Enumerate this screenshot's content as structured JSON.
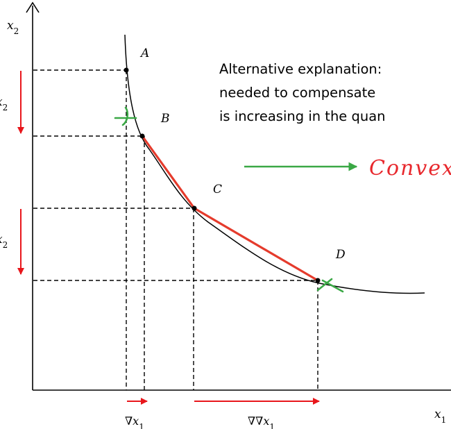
{
  "axes": {
    "y_label": "x",
    "y_label_sub": "2",
    "x_label": "x",
    "x_label_sub": "1"
  },
  "points": {
    "a": "A",
    "b": "B",
    "c": "C",
    "d": "D"
  },
  "delta_labels": {
    "dx2_upper": "x",
    "dx2_upper_sub": "2",
    "dx2_lower": "x",
    "dx2_lower_sub": "2",
    "dx1_small_prefix": "∇",
    "dx1_small_var": "x",
    "dx1_small_sub": "1",
    "dx1_large_prefix": "∇∇",
    "dx1_large_var": "x",
    "dx1_large_sub": "1"
  },
  "annotation": {
    "line1": "Alternative explanation: ",
    "line2": "needed to compensate ",
    "line3": "is increasing in the quan",
    "handwritten": "Convex s"
  },
  "colors": {
    "axis": "#000000",
    "curve": "#000000",
    "chord": "#e53b2c",
    "arrow": "#e8161b",
    "marker": "#3aa845"
  }
}
